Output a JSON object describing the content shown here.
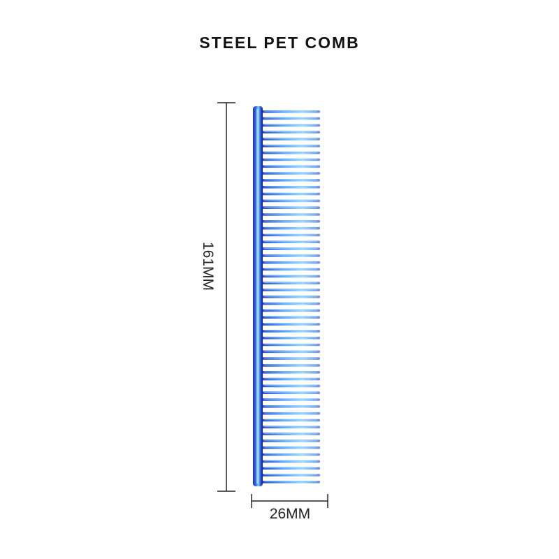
{
  "title": "STEEL PET COMB",
  "dimensions": {
    "height_label": "161MM",
    "width_label": "26MM"
  },
  "product": {
    "teeth_count": 55
  },
  "colors": {
    "spine": "#2a4fd8",
    "tooth": "#4a8ff0",
    "tooth_highlight": "#8fd0ff",
    "measure_line": "#222222"
  }
}
